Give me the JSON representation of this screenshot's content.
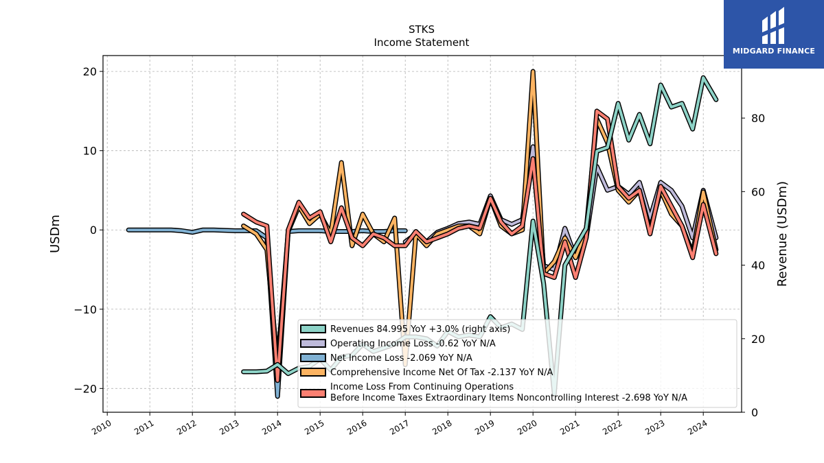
{
  "chart_data": {
    "type": "line",
    "title": "STKS",
    "subtitle": "Income Statement",
    "ylabel": "USDm",
    "ylabel_right": "Revenue (USDm)",
    "ylim": [
      -23,
      22
    ],
    "ylim_right": [
      0,
      97
    ],
    "yticks": [
      -20,
      -10,
      0,
      10,
      20
    ],
    "yticks_right": [
      0,
      20,
      40,
      60,
      80
    ],
    "xlim": [
      2009.9,
      2024.9
    ],
    "xticks": [
      2010,
      2011,
      2012,
      2013,
      2014,
      2015,
      2016,
      2017,
      2018,
      2019,
      2020,
      2021,
      2022,
      2023,
      2024
    ],
    "grid": true,
    "legend_position": "lower right",
    "series": [
      {
        "name": "Revenues",
        "legend_label": "Revenues  84.995 YoY +3.0% (right axis)",
        "axis": "right",
        "color": "#8dd3c7",
        "x": [
          2013.2,
          2013.5,
          2013.75,
          2014.0,
          2014.25,
          2014.5,
          2014.75,
          2015.0,
          2015.25,
          2015.5,
          2015.75,
          2016.0,
          2016.25,
          2016.5,
          2016.75,
          2017.0,
          2017.25,
          2017.5,
          2017.75,
          2018.0,
          2018.25,
          2018.5,
          2018.75,
          2019.0,
          2019.25,
          2019.5,
          2019.75,
          2020.0,
          2020.25,
          2020.5,
          2020.75,
          2021.0,
          2021.25,
          2021.5,
          2021.75,
          2022.0,
          2022.25,
          2022.5,
          2022.75,
          2023.0,
          2023.25,
          2023.5,
          2023.75,
          2024.0,
          2024.3
        ],
        "values": [
          11,
          11,
          11.2,
          13,
          10.5,
          12,
          12.5,
          14.5,
          11.5,
          15,
          15.5,
          18.5,
          16.5,
          17.5,
          18.5,
          20.5,
          20.5,
          20,
          18,
          22,
          20.5,
          21,
          20.5,
          26,
          23,
          24,
          22.5,
          52,
          35,
          5,
          40,
          45,
          50,
          71,
          72,
          84,
          74,
          81,
          73,
          89,
          83,
          84,
          77,
          91,
          85
        ]
      },
      {
        "name": "Operating Income Loss",
        "legend_label": "Operating Income Loss  -0.62 YoY N/A",
        "axis": "left",
        "color": "#bebada",
        "x": [
          2017.0,
          2017.25,
          2017.5,
          2017.75,
          2018.0,
          2018.25,
          2018.5,
          2018.75,
          2019.0,
          2019.25,
          2019.5,
          2019.75,
          2020.0,
          2020.25,
          2020.5,
          2020.75,
          2021.0,
          2021.25,
          2021.5,
          2021.75,
          2022.0,
          2022.25,
          2022.5,
          2022.75,
          2023.0,
          2023.25,
          2023.5,
          2023.75,
          2024.0,
          2024.3
        ],
        "values": [
          -1.5,
          -0.5,
          -1.5,
          -0.3,
          0.2,
          0.8,
          1.0,
          0.7,
          4.3,
          1.3,
          0.7,
          1.3,
          10.5,
          -4.5,
          -5,
          0.2,
          -3.5,
          -1,
          8,
          5,
          5.5,
          4.5,
          6,
          1.5,
          6,
          5,
          3,
          -1,
          5,
          -1
        ]
      },
      {
        "name": "Net Income Loss",
        "legend_label": "Net Income Loss  -2.069 YoY N/A",
        "axis": "left",
        "color": "#80b1d3",
        "x": [
          2010.5,
          2011.0,
          2011.5,
          2011.75,
          2012.0,
          2012.25,
          2012.5,
          2013.0,
          2013.25,
          2013.5,
          2013.75,
          2014.0,
          2014.25,
          2014.5,
          2014.75,
          2015.0,
          2015.25,
          2015.5,
          2015.75,
          2016.0,
          2016.25,
          2016.5,
          2016.75,
          2017.0
        ],
        "values": [
          0,
          0,
          0,
          -0.1,
          -0.3,
          0,
          0,
          -0.1,
          -0.1,
          -0.1,
          -1,
          -21,
          -0.2,
          -0.1,
          -0.1,
          -0.1,
          -0.2,
          -0.2,
          -0.2,
          -0.1,
          -0.2,
          -0.2,
          -0.1,
          -0.1
        ]
      },
      {
        "name": "Comprehensive Income Net Of Tax",
        "legend_label": "Comprehensive Income Net Of Tax  -2.137 YoY N/A",
        "axis": "left",
        "color": "#fdb462",
        "x": [
          2013.2,
          2013.5,
          2013.75,
          2014.0,
          2014.25,
          2014.5,
          2014.75,
          2015.0,
          2015.25,
          2015.5,
          2015.75,
          2016.0,
          2016.25,
          2016.5,
          2016.75,
          2017.0,
          2017.25,
          2017.5,
          2017.75,
          2018.0,
          2018.25,
          2018.5,
          2018.75,
          2019.0,
          2019.25,
          2019.5,
          2019.75,
          2020.0,
          2020.25,
          2020.5,
          2020.75,
          2021.0,
          2021.25,
          2021.5,
          2021.75,
          2022.0,
          2022.25,
          2022.5,
          2022.75,
          2023.0,
          2023.25,
          2023.5,
          2023.75,
          2024.0,
          2024.3
        ],
        "values": [
          0.5,
          -0.5,
          -2.5,
          -17,
          -0.2,
          3,
          0.8,
          2,
          -0.5,
          8.5,
          -2,
          2,
          -0.5,
          -1.5,
          1.5,
          -17,
          -0.5,
          -2,
          -0.5,
          0,
          0.5,
          0.5,
          -0.5,
          4,
          0.5,
          -0.5,
          0,
          20,
          -5.5,
          -4,
          -1,
          -3.5,
          0,
          14,
          11,
          5,
          3.5,
          5,
          0,
          5,
          2,
          0.5,
          -3,
          4.8,
          -2.5
        ]
      },
      {
        "name": "Income Loss From Continuing Operations Before Income Taxes Extraordinary Items Noncontrolling Interest",
        "legend_label_line1": "Income Loss From Continuing Operations",
        "legend_label_line2": "Before Income Taxes Extraordinary Items Noncontrolling Interest  -2.698 YoY N/A",
        "axis": "left",
        "color": "#fb8072",
        "x": [
          2013.2,
          2013.5,
          2013.75,
          2014.0,
          2014.25,
          2014.5,
          2014.75,
          2015.0,
          2015.25,
          2015.5,
          2015.75,
          2016.0,
          2016.25,
          2016.5,
          2016.75,
          2017.0,
          2017.25,
          2017.5,
          2017.75,
          2018.0,
          2018.25,
          2018.5,
          2018.75,
          2019.0,
          2019.25,
          2019.5,
          2019.75,
          2020.0,
          2020.25,
          2020.5,
          2020.75,
          2021.0,
          2021.25,
          2021.5,
          2021.75,
          2022.0,
          2022.25,
          2022.5,
          2022.75,
          2023.0,
          2023.25,
          2023.5,
          2023.75,
          2024.0,
          2024.3
        ],
        "values": [
          2,
          1,
          0.5,
          -19,
          0,
          3.5,
          1.5,
          2.3,
          -1.5,
          2.8,
          -1,
          -2,
          -0.5,
          -1,
          -2,
          -2,
          -0.2,
          -1.5,
          -1,
          -0.5,
          0.2,
          0.5,
          0.2,
          4,
          1,
          -0.5,
          0.5,
          9,
          -5.5,
          -6,
          -1.5,
          -6,
          -1,
          15,
          14,
          5.5,
          4,
          5,
          -0.5,
          5.5,
          3,
          0.5,
          -3.5,
          3.2,
          -3
        ]
      }
    ]
  },
  "logo": {
    "text": "MIDGARD FINANCE",
    "icon": "midgard-logo-icon",
    "background": "#2d55a8"
  }
}
